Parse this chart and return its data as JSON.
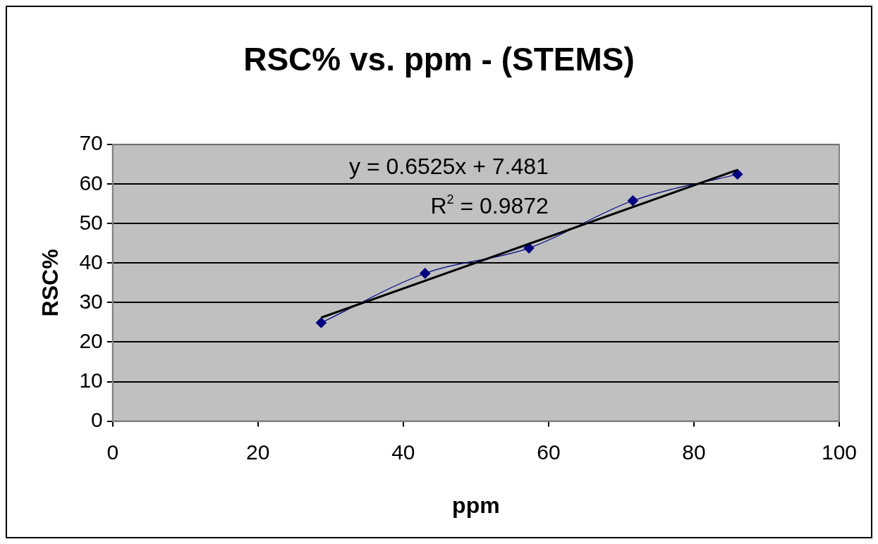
{
  "chart_data": {
    "type": "line",
    "title": "RSC% vs. ppm - (STEMS)",
    "xlabel": "ppm",
    "ylabel": "RSC%",
    "x": [
      28.7,
      43,
      57.3,
      71.6,
      86
    ],
    "series": [
      {
        "color": "#000080",
        "values": [
          24.9,
          37.4,
          43.8,
          55.8,
          62.5
        ],
        "marker": "diamond"
      },
      {
        "color": "#000000",
        "x": [
          28.7,
          86
        ],
        "values": [
          26.2,
          63.6
        ],
        "marker": "none"
      }
    ],
    "annotations": [
      "y = 0.6525x + 7.481",
      "R$^{2}$ = 0.9872"
    ],
    "xlim": [
      0,
      100
    ],
    "xticks": [
      0,
      20,
      40,
      60,
      80,
      100
    ],
    "ylim": [
      0,
      70
    ],
    "yticks": [
      0,
      10,
      20,
      30,
      40,
      50,
      60,
      70
    ],
    "grid": "y",
    "legend": false
  }
}
